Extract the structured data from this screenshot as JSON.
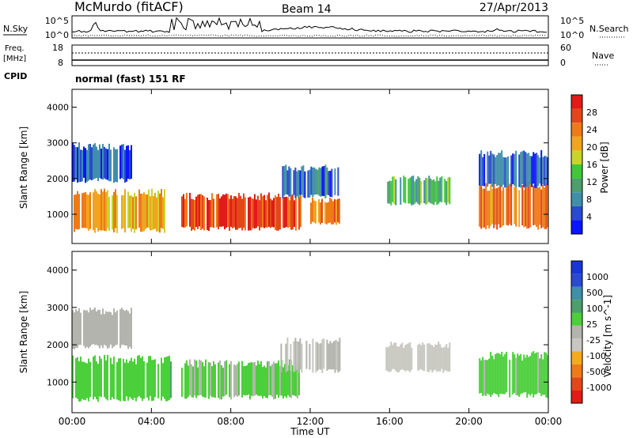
{
  "header": {
    "station": "McMurdo (fitACF)",
    "beam": "Beam 14",
    "date": "27/Apr/2013"
  },
  "top_panel": {
    "left_label": "N.Sky",
    "left_ticks": [
      "10^5",
      "10^0"
    ],
    "right_label": "N.Search",
    "right_ticks": [
      "10^5",
      "10^0"
    ]
  },
  "freq_panel": {
    "left_label_1": "Freq.",
    "left_label_2": "[MHz]",
    "left_ticks": [
      "18",
      "8"
    ],
    "right_label": "Nave",
    "right_ticks": [
      "60",
      "0"
    ]
  },
  "cpid": {
    "label": "CPID",
    "value": "normal (fast) 151 RF"
  },
  "colors": {
    "power": [
      "#0a14ff",
      "#2a4ad0",
      "#3f8fa8",
      "#4d9e6d",
      "#3fc83a",
      "#c8d42a",
      "#f0a51e",
      "#ef7a17",
      "#e4461b",
      "#e01b18"
    ],
    "velocity": [
      "#e01b18",
      "#e4461b",
      "#f07a17",
      "#f5aa1e",
      "#c7c7c0",
      "#b4b4ae",
      "#4bcf3a",
      "#4d9e6d",
      "#3f8fa8",
      "#2a4ad0",
      "#1a36d6"
    ]
  },
  "chart_data": [
    {
      "type": "heatmap",
      "title": "Power",
      "xlabel": "Time UT",
      "ylabel": "Slant Range [km]",
      "x_ticks": [
        "00:00",
        "04:00",
        "08:00",
        "12:00",
        "16:00",
        "20:00",
        "00:00"
      ],
      "x_range_hours": [
        0,
        24
      ],
      "y_ticks": [
        "1000",
        "2000",
        "3000",
        "4000"
      ],
      "y_range_km": [
        180,
        4500
      ],
      "colorbar": {
        "label": "Power [dB]",
        "ticks": [
          "4",
          "8",
          "12",
          "16",
          "20",
          "24",
          "28"
        ],
        "range": [
          0,
          30
        ]
      },
      "echo_regions": [
        {
          "t_start": 0.0,
          "t_end": 5.0,
          "r_low": 550,
          "r_high": 1600,
          "value": 20
        },
        {
          "t_start": 0.0,
          "t_end": 3.0,
          "r_low": 1950,
          "r_high": 2900,
          "value": 5
        },
        {
          "t_start": 5.5,
          "t_end": 11.5,
          "r_low": 600,
          "r_high": 1500,
          "value": 26
        },
        {
          "t_start": 10.5,
          "t_end": 13.5,
          "r_low": 1500,
          "r_high": 2300,
          "value": 6
        },
        {
          "t_start": 12.0,
          "t_end": 13.5,
          "r_low": 750,
          "r_high": 1400,
          "value": 22
        },
        {
          "t_start": 15.8,
          "t_end": 19.0,
          "r_low": 1300,
          "r_high": 2000,
          "value": 12
        },
        {
          "t_start": 20.5,
          "t_end": 24.0,
          "r_low": 650,
          "r_high": 1800,
          "value": 22
        },
        {
          "t_start": 20.5,
          "t_end": 24.0,
          "r_low": 1800,
          "r_high": 2700,
          "value": 5
        }
      ]
    },
    {
      "type": "heatmap",
      "title": "Velocity",
      "xlabel": "Time UT",
      "ylabel": "Slant Range [km]",
      "x_ticks": [
        "00:00",
        "04:00",
        "08:00",
        "12:00",
        "16:00",
        "20:00",
        "00:00"
      ],
      "x_range_hours": [
        0,
        24
      ],
      "y_ticks": [
        "1000",
        "2000",
        "3000",
        "4000"
      ],
      "y_range_km": [
        180,
        4500
      ],
      "colorbar": {
        "label": "Velocity [m s^-1]",
        "ticks": [
          "1000",
          "500",
          "100",
          "25",
          "-25",
          "-100",
          "-500",
          "-1000"
        ],
        "range": [
          -1000,
          1000
        ]
      },
      "echo_regions": [
        {
          "t_start": 0.0,
          "t_end": 5.0,
          "r_low": 550,
          "r_high": 1600,
          "value": 200
        },
        {
          "t_start": 0.0,
          "t_end": 3.0,
          "r_low": 1950,
          "r_high": 2900,
          "value": 0
        },
        {
          "t_start": 5.5,
          "t_end": 11.5,
          "r_low": 600,
          "r_high": 1500,
          "value": 120
        },
        {
          "t_start": 10.5,
          "t_end": 13.5,
          "r_low": 1300,
          "r_high": 2100,
          "value": -80
        },
        {
          "t_start": 15.8,
          "t_end": 19.0,
          "r_low": 1300,
          "r_high": 2000,
          "value": -200
        },
        {
          "t_start": 20.5,
          "t_end": 24.0,
          "r_low": 650,
          "r_high": 1700,
          "value": 150
        }
      ]
    }
  ]
}
